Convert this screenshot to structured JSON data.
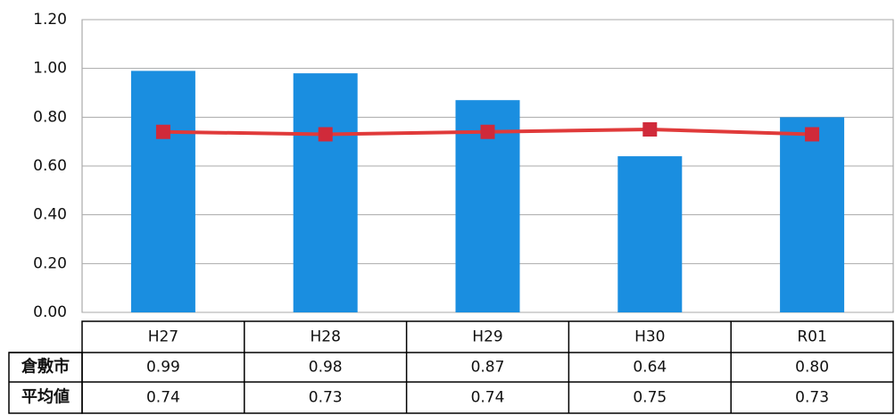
{
  "chart_data": {
    "type": "bar_line_table",
    "categories": [
      "H27",
      "H28",
      "H29",
      "H30",
      "R01"
    ],
    "series": [
      {
        "name": "倉敷市",
        "type": "bar",
        "color": "#1a8ee0",
        "values": [
          0.99,
          0.98,
          0.87,
          0.64,
          0.8
        ],
        "value_labels": [
          "0.99",
          "0.98",
          "0.87",
          "0.64",
          "0.80"
        ]
      },
      {
        "name": "平均値",
        "type": "line",
        "color": "#e03a3a",
        "marker_color": "#d02a3a",
        "values": [
          0.74,
          0.73,
          0.74,
          0.75,
          0.73
        ],
        "value_labels": [
          "0.74",
          "0.73",
          "0.74",
          "0.75",
          "0.73"
        ]
      }
    ],
    "ylim": [
      0,
      1.2
    ],
    "yticks": [
      {
        "value": 0,
        "label": "0.00"
      },
      {
        "value": 0.2,
        "label": "0.20"
      },
      {
        "value": 0.4,
        "label": "0.40"
      },
      {
        "value": 0.6,
        "label": "0.60"
      },
      {
        "value": 0.8,
        "label": "0.80"
      },
      {
        "value": 1,
        "label": "1.00"
      },
      {
        "value": 1.2,
        "label": "1.20"
      }
    ],
    "grid": true
  }
}
